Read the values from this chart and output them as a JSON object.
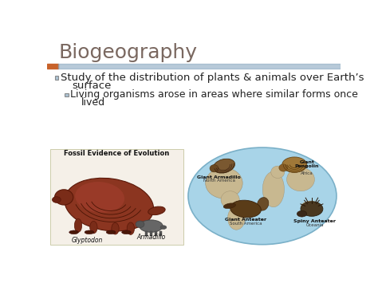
{
  "title": "Biogeography",
  "title_color": "#7a6860",
  "title_fontsize": 18,
  "slide_bg": "#ffffff",
  "header_bar_orange": "#c8622a",
  "header_bar_blue": "#8aa8c0",
  "bullet1_line1": "Study of the distribution of plants & animals over Earth’s",
  "bullet1_line2": "surface",
  "bullet2_line1": "Living organisms arose in areas where similar forms once",
  "bullet2_line2": "lived",
  "bullet_color": "#222222",
  "bullet_fontsize": 9.5,
  "sub_bullet_fontsize": 9.0,
  "left_image_title": "Fossil Evidence of Evolution",
  "left_caption1": "Glyptodon",
  "left_caption2": "Armadillo",
  "right_label_arm": [
    "Giant Armadillo",
    "North America"
  ],
  "right_label_pang": [
    "Giant\nPangolin",
    "Africa"
  ],
  "right_label_ant": [
    "Giant Anteater",
    "South America"
  ],
  "right_label_spiny": [
    "Spiny Anteater",
    "Oceania"
  ],
  "fossil_bg": "#f5f0e8",
  "world_blue": "#a8d4e8",
  "continent_color": "#c8b890",
  "animal_dark": "#7a4820",
  "animal_med": "#a07030",
  "animal_light": "#c09858"
}
